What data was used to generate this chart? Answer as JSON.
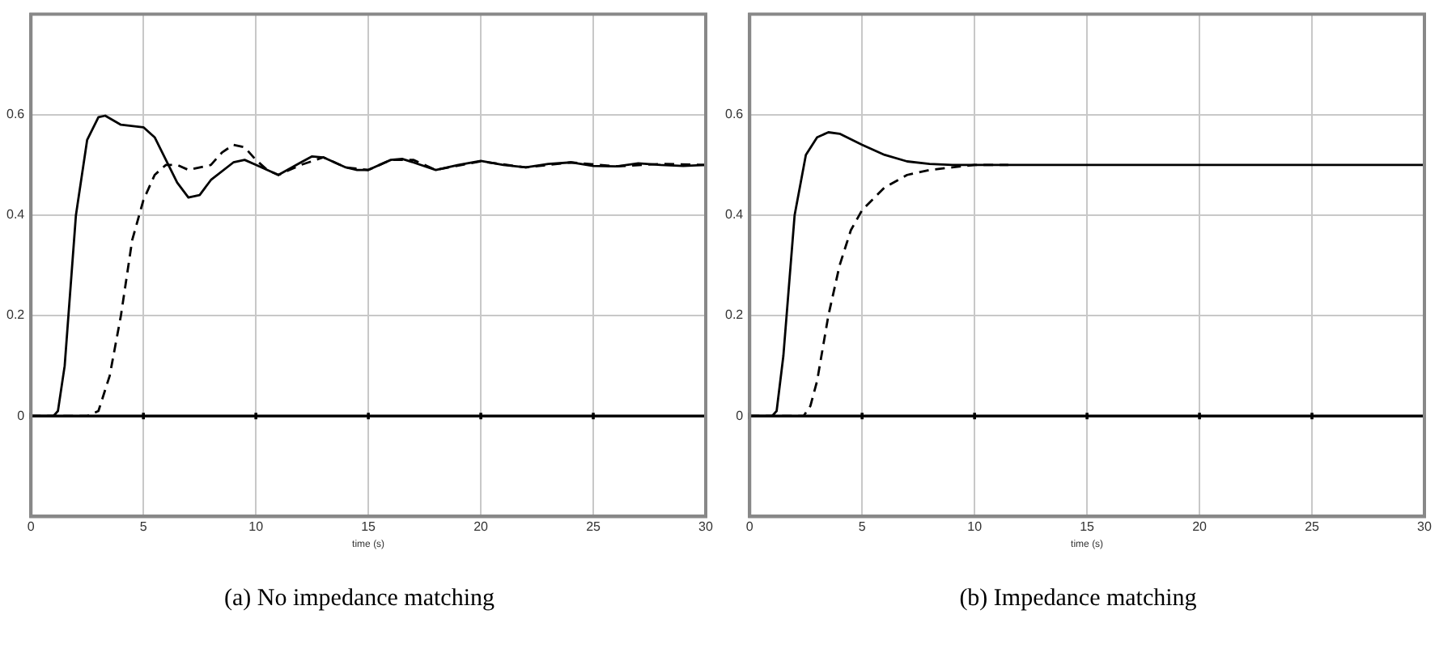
{
  "chart_data": [
    {
      "type": "line",
      "title": "(a) No impedance matching",
      "xlabel": "time (s)",
      "xlim": [
        0,
        30
      ],
      "xticks": [
        0,
        5,
        10,
        15,
        20,
        25,
        30
      ],
      "ylim": [
        -0.2,
        0.8
      ],
      "yticks": [
        0,
        0.2,
        0.4,
        0.6
      ],
      "grid": true,
      "legend": false,
      "marker": "none",
      "ref_lines": [
        {
          "axis": "y",
          "value": 0,
          "color": "#000000"
        }
      ],
      "series": [
        {
          "color": "#000000",
          "line_style": "solid",
          "x": [
            0,
            1,
            1.2,
            1.5,
            2,
            2.5,
            3,
            3.3,
            4,
            5,
            5.5,
            6,
            6.5,
            7,
            7.5,
            8,
            9,
            9.5,
            10,
            11,
            12,
            12.5,
            13,
            14,
            14.5,
            15,
            16,
            16.5,
            17,
            18,
            19,
            20,
            21,
            22,
            23,
            24,
            25,
            26,
            27,
            28,
            29,
            30
          ],
          "values": [
            0,
            0,
            0.01,
            0.1,
            0.4,
            0.55,
            0.595,
            0.598,
            0.58,
            0.575,
            0.555,
            0.51,
            0.465,
            0.435,
            0.44,
            0.47,
            0.505,
            0.51,
            0.5,
            0.48,
            0.505,
            0.517,
            0.515,
            0.495,
            0.49,
            0.49,
            0.51,
            0.512,
            0.505,
            0.49,
            0.5,
            0.508,
            0.5,
            0.495,
            0.502,
            0.505,
            0.498,
            0.497,
            0.503,
            0.5,
            0.498,
            0.5
          ]
        },
        {
          "color": "#000000",
          "line_style": "dashed",
          "x": [
            0,
            2.5,
            3,
            3.5,
            4,
            4.5,
            5,
            5.5,
            6,
            6.5,
            7,
            8,
            8.5,
            9,
            9.5,
            10,
            10.5,
            11,
            12,
            13,
            14,
            15,
            16,
            17,
            18,
            20,
            22,
            24,
            26,
            28,
            30
          ],
          "values": [
            0,
            0,
            0.01,
            0.08,
            0.2,
            0.35,
            0.43,
            0.48,
            0.5,
            0.5,
            0.49,
            0.5,
            0.525,
            0.54,
            0.535,
            0.51,
            0.49,
            0.48,
            0.5,
            0.515,
            0.495,
            0.49,
            0.51,
            0.51,
            0.49,
            0.507,
            0.495,
            0.505,
            0.497,
            0.502,
            0.5
          ]
        }
      ]
    },
    {
      "type": "line",
      "title": "(b) Impedance matching",
      "xlabel": "time (s)",
      "xlim": [
        0,
        30
      ],
      "xticks": [
        0,
        5,
        10,
        15,
        20,
        25,
        30
      ],
      "ylim": [
        -0.2,
        0.8
      ],
      "yticks": [
        0,
        0.2,
        0.4,
        0.6
      ],
      "grid": true,
      "legend": false,
      "marker": "none",
      "ref_lines": [
        {
          "axis": "y",
          "value": 0,
          "color": "#000000"
        }
      ],
      "series": [
        {
          "color": "#000000",
          "line_style": "solid",
          "x": [
            0,
            1,
            1.2,
            1.5,
            2,
            2.5,
            3,
            3.5,
            4,
            5,
            6,
            7,
            8,
            9,
            30
          ],
          "values": [
            0,
            0,
            0.01,
            0.12,
            0.4,
            0.52,
            0.555,
            0.565,
            0.562,
            0.54,
            0.52,
            0.507,
            0.502,
            0.5,
            0.5
          ]
        },
        {
          "color": "#000000",
          "line_style": "dashed",
          "x": [
            0,
            2.4,
            2.7,
            3,
            3.5,
            4,
            4.5,
            5,
            6,
            7,
            8,
            9,
            10,
            11.5
          ],
          "values": [
            0,
            0,
            0.02,
            0.07,
            0.2,
            0.3,
            0.37,
            0.41,
            0.455,
            0.48,
            0.49,
            0.495,
            0.5,
            0.5
          ]
        }
      ]
    }
  ]
}
